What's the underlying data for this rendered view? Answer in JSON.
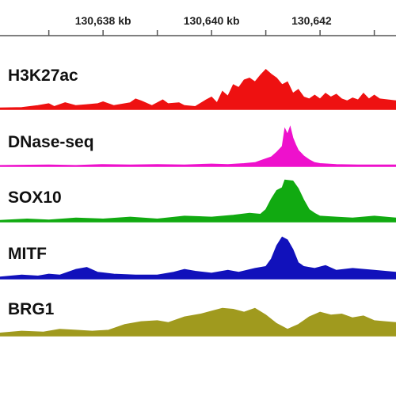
{
  "axis": {
    "ticks": [
      {
        "label": "130,638 kb",
        "kb": 130638
      },
      {
        "label": "130,640 kb",
        "kb": 130640
      },
      {
        "label": "130,642",
        "kb": 130642
      }
    ]
  },
  "chart_data": {
    "type": "area",
    "x_unit": "kb",
    "x_range": [
      130636.1,
      130643.4
    ],
    "series": [
      {
        "name": "H3K27ac",
        "color": "#ee1111",
        "y_range": [
          0,
          100
        ],
        "points": [
          [
            130636.1,
            3
          ],
          [
            130636.5,
            4
          ],
          [
            130636.8,
            8
          ],
          [
            130637.0,
            12
          ],
          [
            130637.1,
            6
          ],
          [
            130637.3,
            14
          ],
          [
            130637.5,
            8
          ],
          [
            130637.7,
            10
          ],
          [
            130637.9,
            12
          ],
          [
            130638.0,
            16
          ],
          [
            130638.2,
            8
          ],
          [
            130638.5,
            14
          ],
          [
            130638.6,
            22
          ],
          [
            130638.7,
            18
          ],
          [
            130638.9,
            8
          ],
          [
            130639.1,
            20
          ],
          [
            130639.2,
            12
          ],
          [
            130639.4,
            14
          ],
          [
            130639.5,
            8
          ],
          [
            130639.7,
            6
          ],
          [
            130639.9,
            20
          ],
          [
            130640.0,
            26
          ],
          [
            130640.1,
            14
          ],
          [
            130640.2,
            38
          ],
          [
            130640.3,
            28
          ],
          [
            130640.4,
            52
          ],
          [
            130640.5,
            46
          ],
          [
            130640.6,
            62
          ],
          [
            130640.7,
            66
          ],
          [
            130640.8,
            58
          ],
          [
            130640.9,
            72
          ],
          [
            130641.0,
            84
          ],
          [
            130641.1,
            74
          ],
          [
            130641.2,
            66
          ],
          [
            130641.3,
            52
          ],
          [
            130641.4,
            58
          ],
          [
            130641.5,
            34
          ],
          [
            130641.6,
            42
          ],
          [
            130641.7,
            26
          ],
          [
            130641.8,
            22
          ],
          [
            130641.9,
            30
          ],
          [
            130642.0,
            22
          ],
          [
            130642.1,
            34
          ],
          [
            130642.2,
            26
          ],
          [
            130642.3,
            32
          ],
          [
            130642.4,
            22
          ],
          [
            130642.5,
            18
          ],
          [
            130642.6,
            24
          ],
          [
            130642.7,
            20
          ],
          [
            130642.8,
            34
          ],
          [
            130642.9,
            22
          ],
          [
            130643.0,
            30
          ],
          [
            130643.1,
            22
          ],
          [
            130643.4,
            18
          ]
        ]
      },
      {
        "name": "DNase-seq",
        "color": "#ee11cc",
        "y_range": [
          0,
          100
        ],
        "points": [
          [
            130636.1,
            2
          ],
          [
            130637.0,
            3
          ],
          [
            130637.5,
            2
          ],
          [
            130638.0,
            4
          ],
          [
            130638.5,
            3
          ],
          [
            130639.0,
            4
          ],
          [
            130639.5,
            3
          ],
          [
            130640.0,
            5
          ],
          [
            130640.3,
            4
          ],
          [
            130640.6,
            6
          ],
          [
            130640.8,
            8
          ],
          [
            130640.9,
            12
          ],
          [
            130641.0,
            16
          ],
          [
            130641.1,
            20
          ],
          [
            130641.2,
            30
          ],
          [
            130641.3,
            42
          ],
          [
            130641.35,
            80
          ],
          [
            130641.4,
            68
          ],
          [
            130641.45,
            84
          ],
          [
            130641.5,
            60
          ],
          [
            130641.55,
            46
          ],
          [
            130641.6,
            34
          ],
          [
            130641.7,
            22
          ],
          [
            130641.8,
            14
          ],
          [
            130641.9,
            8
          ],
          [
            130642.0,
            6
          ],
          [
            130642.3,
            4
          ],
          [
            130642.7,
            3
          ],
          [
            130643.4,
            3
          ]
        ]
      },
      {
        "name": "SOX10",
        "color": "#11aa11",
        "y_range": [
          0,
          100
        ],
        "points": [
          [
            130636.1,
            3
          ],
          [
            130636.6,
            6
          ],
          [
            130637.0,
            4
          ],
          [
            130637.5,
            8
          ],
          [
            130638.0,
            6
          ],
          [
            130638.5,
            10
          ],
          [
            130639.0,
            6
          ],
          [
            130639.5,
            12
          ],
          [
            130640.0,
            10
          ],
          [
            130640.4,
            14
          ],
          [
            130640.7,
            18
          ],
          [
            130640.9,
            16
          ],
          [
            130641.0,
            26
          ],
          [
            130641.1,
            48
          ],
          [
            130641.2,
            66
          ],
          [
            130641.3,
            72
          ],
          [
            130641.35,
            88
          ],
          [
            130641.5,
            86
          ],
          [
            130641.6,
            70
          ],
          [
            130641.7,
            46
          ],
          [
            130641.8,
            26
          ],
          [
            130641.9,
            18
          ],
          [
            130642.0,
            12
          ],
          [
            130642.3,
            10
          ],
          [
            130642.6,
            8
          ],
          [
            130643.0,
            12
          ],
          [
            130643.4,
            8
          ]
        ]
      },
      {
        "name": "MITF",
        "color": "#1111bb",
        "y_range": [
          0,
          100
        ],
        "points": [
          [
            130636.1,
            4
          ],
          [
            130636.5,
            8
          ],
          [
            130636.8,
            6
          ],
          [
            130637.0,
            10
          ],
          [
            130637.2,
            8
          ],
          [
            130637.5,
            20
          ],
          [
            130637.7,
            24
          ],
          [
            130637.9,
            14
          ],
          [
            130638.2,
            10
          ],
          [
            130638.6,
            8
          ],
          [
            130639.0,
            8
          ],
          [
            130639.3,
            14
          ],
          [
            130639.5,
            20
          ],
          [
            130639.7,
            16
          ],
          [
            130640.0,
            12
          ],
          [
            130640.3,
            18
          ],
          [
            130640.5,
            14
          ],
          [
            130640.8,
            22
          ],
          [
            130641.0,
            26
          ],
          [
            130641.1,
            42
          ],
          [
            130641.2,
            70
          ],
          [
            130641.3,
            88
          ],
          [
            130641.4,
            82
          ],
          [
            130641.5,
            62
          ],
          [
            130641.6,
            34
          ],
          [
            130641.7,
            26
          ],
          [
            130641.9,
            22
          ],
          [
            130642.1,
            28
          ],
          [
            130642.3,
            18
          ],
          [
            130642.6,
            22
          ],
          [
            130643.0,
            18
          ],
          [
            130643.4,
            14
          ]
        ]
      },
      {
        "name": "BRG1",
        "color": "#a09a1e",
        "y_range": [
          0,
          100
        ],
        "points": [
          [
            130636.1,
            6
          ],
          [
            130636.5,
            10
          ],
          [
            130636.9,
            8
          ],
          [
            130637.2,
            14
          ],
          [
            130637.5,
            12
          ],
          [
            130637.8,
            10
          ],
          [
            130638.1,
            12
          ],
          [
            130638.4,
            24
          ],
          [
            130638.7,
            30
          ],
          [
            130639.0,
            32
          ],
          [
            130639.2,
            28
          ],
          [
            130639.5,
            40
          ],
          [
            130639.8,
            46
          ],
          [
            130640.0,
            52
          ],
          [
            130640.2,
            58
          ],
          [
            130640.4,
            56
          ],
          [
            130640.6,
            50
          ],
          [
            130640.8,
            58
          ],
          [
            130641.0,
            44
          ],
          [
            130641.2,
            26
          ],
          [
            130641.4,
            14
          ],
          [
            130641.6,
            24
          ],
          [
            130641.8,
            40
          ],
          [
            130642.0,
            50
          ],
          [
            130642.2,
            44
          ],
          [
            130642.4,
            46
          ],
          [
            130642.6,
            38
          ],
          [
            130642.8,
            42
          ],
          [
            130643.0,
            32
          ],
          [
            130643.2,
            30
          ],
          [
            130643.4,
            28
          ]
        ]
      }
    ]
  }
}
